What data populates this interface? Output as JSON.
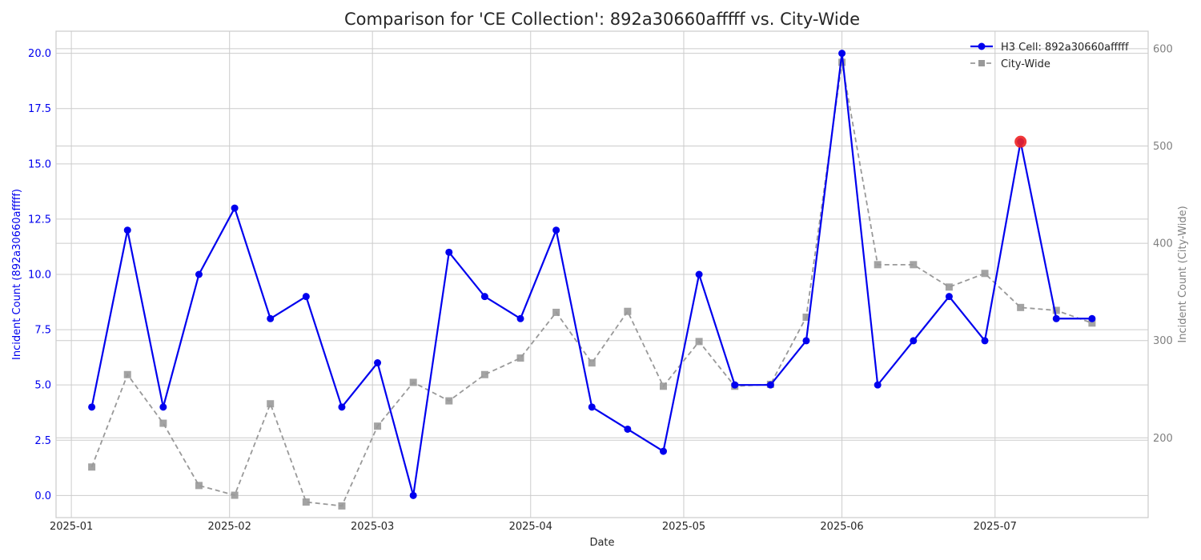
{
  "chart_data": {
    "type": "line",
    "title": "Comparison for 'CE Collection': 892a30660afffff vs. City-Wide",
    "xlabel": "Date",
    "ylabel": "Incident Count (892a30660afffff)",
    "y2label": "Incident Count (City-Wide)",
    "x_ticks": [
      "2025-01",
      "2025-02",
      "2025-03",
      "2025-04",
      "2025-05",
      "2025-06",
      "2025-07"
    ],
    "y_ticks": [
      "0.0",
      "2.5",
      "5.0",
      "7.5",
      "10.0",
      "12.5",
      "15.0",
      "17.5",
      "20.0"
    ],
    "y2_ticks": [
      "200",
      "300",
      "400",
      "500",
      "600"
    ],
    "ylim": [
      -1.0,
      21.0
    ],
    "y2lim": [
      118,
      618
    ],
    "xlim": [
      "2024-12-29",
      "2025-07-31"
    ],
    "grid": true,
    "legend_position": "top-right",
    "x": [
      "2025-01-05",
      "2025-01-12",
      "2025-01-19",
      "2025-01-26",
      "2025-02-02",
      "2025-02-09",
      "2025-02-16",
      "2025-02-23",
      "2025-03-02",
      "2025-03-09",
      "2025-03-16",
      "2025-03-23",
      "2025-03-30",
      "2025-04-06",
      "2025-04-13",
      "2025-04-20",
      "2025-04-27",
      "2025-05-04",
      "2025-05-11",
      "2025-05-18",
      "2025-05-25",
      "2025-06-01",
      "2025-06-08",
      "2025-06-15",
      "2025-06-22",
      "2025-06-29",
      "2025-07-06",
      "2025-07-13",
      "2025-07-20"
    ],
    "series": [
      {
        "name": "H3 Cell: 892a30660afffff",
        "axis": "left",
        "color": "#0000ee",
        "marker": "circle",
        "style": "solid",
        "values": [
          4,
          12,
          4,
          10,
          13,
          8,
          9,
          4,
          6,
          0,
          11,
          9,
          8,
          12,
          4,
          3,
          2,
          10,
          5,
          5,
          7,
          20,
          5,
          7,
          9,
          7,
          16,
          8,
          8
        ]
      },
      {
        "name": "City-Wide",
        "axis": "right",
        "color": "#999999",
        "marker": "square",
        "style": "dashed",
        "values": [
          170,
          265,
          215,
          151,
          141,
          235,
          134,
          130,
          212,
          257,
          238,
          265,
          282,
          329,
          277,
          330,
          253,
          299,
          253,
          255,
          324,
          586,
          378,
          378,
          355,
          369,
          334,
          331,
          318
        ]
      }
    ],
    "highlight": {
      "x": "2025-07-06",
      "value": 16,
      "color": "#ee2222"
    }
  }
}
